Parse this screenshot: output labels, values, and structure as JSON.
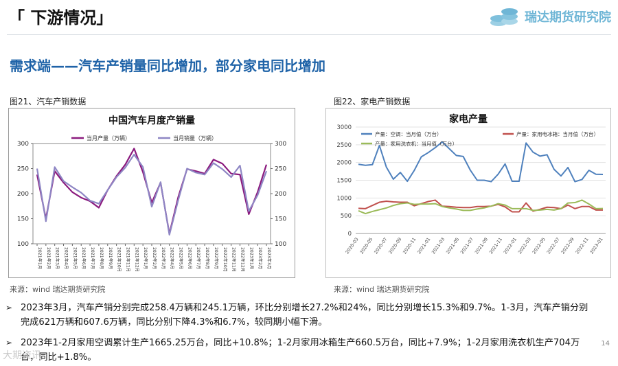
{
  "header": {
    "title": "「 下游情况」",
    "logo_text": "瑞达期货研究院"
  },
  "slide_heading": "需求端——汽车产销量同比增加，部分家电同比增加",
  "figures": {
    "fig21_caption": "图21、汽车产销数据",
    "fig22_caption": "图22、家电产销数据",
    "source_left": "来源：wind   瑞达期货研究院",
    "source_right": "来源：wind   瑞达期货研究院"
  },
  "chart_data": [
    {
      "type": "line",
      "title": "中国汽车月度产销量",
      "legend": [
        "当月产量（万辆）",
        "当月销量（万辆）"
      ],
      "colors": [
        "#8b1a7e",
        "#8e86c4"
      ],
      "ylim": [
        100,
        300
      ],
      "yticks": [
        100,
        150,
        200,
        250,
        300
      ],
      "categories": [
        "2021年1月",
        "2021年2月",
        "2021年3月",
        "2021年4月",
        "2021年5月",
        "2021年6月",
        "2021年7月",
        "2021年8月",
        "2021年9月",
        "2021年10月",
        "2021年11月",
        "2021年12月",
        "2022年1月",
        "2022年2月",
        "2022年3月",
        "2022年4月",
        "2022年5月",
        "2022年6月",
        "2022年7月",
        "2022年8月",
        "2022年9月",
        "2022年10月",
        "2022年11月",
        "2022年12月",
        "2023年1月",
        "2023年2月",
        "2023年3月"
      ],
      "series": [
        {
          "name": "当月产量（万辆）",
          "values": [
            238,
            150,
            245,
            222,
            203,
            192,
            185,
            172,
            207,
            235,
            258,
            290,
            243,
            182,
            222,
            120,
            193,
            249,
            245,
            240,
            268,
            260,
            240,
            238,
            159,
            203,
            258
          ]
        },
        {
          "name": "当月销量（万辆）",
          "values": [
            250,
            145,
            253,
            225,
            213,
            202,
            186,
            180,
            207,
            233,
            252,
            278,
            253,
            174,
            223,
            118,
            187,
            250,
            242,
            238,
            261,
            249,
            233,
            256,
            165,
            197,
            245
          ]
        }
      ]
    },
    {
      "type": "line",
      "title": "家电产量",
      "legend": [
        "产量：空调：当月值（万台）",
        "产量：家用电冰箱：当月值（万台）",
        "产量：家用洗衣机：当月值（万台）"
      ],
      "colors": [
        "#4f81bd",
        "#c0504d",
        "#9bbb59"
      ],
      "ylim": [
        0,
        3000
      ],
      "yticks": [
        0,
        500,
        1000,
        1500,
        2000,
        2500,
        3000
      ],
      "xticks": [
        "2020-03",
        "2020-05",
        "2020-07",
        "2020-09",
        "2020-11",
        "2021-01",
        "2021-03",
        "2021-05",
        "2021-07",
        "2021-09",
        "2021-11",
        "2022-01",
        "2022-03",
        "2022-05",
        "2022-07",
        "2022-09",
        "2022-11",
        "2023-01"
      ],
      "series": [
        {
          "name": "产量：空调：当月值（万台）",
          "values": [
            1950,
            1920,
            1940,
            2480,
            1870,
            1530,
            1720,
            1470,
            1780,
            2160,
            2280,
            2420,
            2580,
            2390,
            2200,
            2170,
            1790,
            1500,
            1500,
            1460,
            1670,
            1960,
            1470,
            1470,
            2550,
            2290,
            2180,
            2220,
            1810,
            1620,
            1860,
            1460,
            1520,
            1780,
            1670,
            1665
          ]
        },
        {
          "name": "产量：家用电冰箱：当月值（万台）",
          "values": [
            710,
            700,
            790,
            880,
            910,
            890,
            880,
            880,
            780,
            840,
            900,
            940,
            770,
            760,
            740,
            730,
            730,
            760,
            760,
            770,
            820,
            750,
            610,
            610,
            860,
            630,
            680,
            740,
            730,
            700,
            800,
            700,
            760,
            760,
            660,
            660
          ]
        },
        {
          "name": "产量：家用洗衣机：当月值（万台）",
          "values": [
            640,
            560,
            620,
            670,
            720,
            790,
            840,
            860,
            820,
            830,
            830,
            840,
            760,
            720,
            690,
            650,
            650,
            690,
            720,
            770,
            840,
            800,
            700,
            700,
            700,
            650,
            660,
            680,
            660,
            700,
            860,
            870,
            940,
            830,
            700,
            704
          ]
        }
      ]
    }
  ],
  "bullets": [
    "2023年3月，汽车产销分别完成258.4万辆和245.1万辆，环比分别增长27.2%和24%，同比分别增长15.3%和9.7%。1-3月，汽车产销分别完成621万辆和607.6万辆，同比分别下降4.3%和6.7%，较同期小幅下滑。",
    "2023年1-2月家用空调累计生产1665.25万台，同比+10.8%；1-2月家用冰箱生产660.5万台，同比+7.9%；1-2月家用洗衣机生产704万台，同比+1.8%。"
  ],
  "page_number": "14",
  "watermark": "大期资讯"
}
